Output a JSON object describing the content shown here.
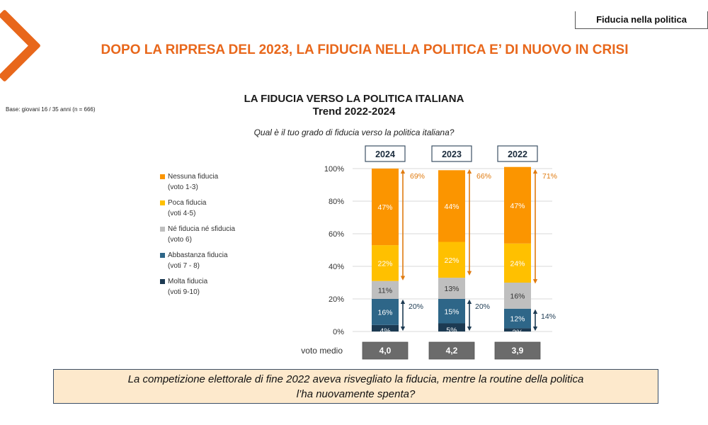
{
  "header": {
    "tag": "Fiducia nella politica",
    "main_title": "DOPO LA RIPRESA DEL 2023, LA FIDUCIA NELLA POLITICA E’ DI NUOVO IN CRISI",
    "base_note": "Base: giovani 16 / 35 anni (n = 666)"
  },
  "callout": {
    "line1": "La competizione elettorale di fine 2022  aveva risvegliato la fiducia, mentre la routine  della politica",
    "line2": "l’ha nuovamente spenta?"
  },
  "colors": {
    "accent": "#e8671b",
    "nessuna": "#fb9500",
    "poca": "#ffc000",
    "ne": "#bfbfbf",
    "abbastanza": "#2e6688",
    "molta": "#1c3a52",
    "arrow_orange": "#e07b10",
    "arrow_navy": "#1c3a52",
    "voto_box": "#6b6b6b"
  },
  "legend": [
    {
      "line1": "Nessuna fiducia",
      "line2": "(voto 1-3)",
      "key": "nessuna"
    },
    {
      "line1": "Poca fiducia",
      "line2": "(voti 4-5)",
      "key": "poca"
    },
    {
      "line1": "Né fiducia né sfiducia",
      "line2": "(voto 6)",
      "key": "ne"
    },
    {
      "line1": "Abbastanza fiducia",
      "line2": "(voti 7 - 8)",
      "key": "abbastanza"
    },
    {
      "line1": "Molta fiducia",
      "line2": "(voti 9-10)",
      "key": "molta"
    }
  ],
  "chart_data": {
    "type": "bar",
    "stacked": true,
    "title": "LA FIDUCIA VERSO LA POLITICA ITALIANA",
    "subtitle": "Trend 2022-2024",
    "question": "Qual è il tuo grado di fiducia verso la politica italiana?",
    "categories": [
      "2024",
      "2023",
      "2022"
    ],
    "ylim": [
      0,
      100
    ],
    "yticks": [
      "0%",
      "20%",
      "40%",
      "60%",
      "80%",
      "100%"
    ],
    "grid": true,
    "legend_position": "left",
    "series": [
      {
        "name": "Molta fiducia (voti 9-10)",
        "key": "molta",
        "values": [
          4,
          5,
          2
        ]
      },
      {
        "name": "Abbastanza fiducia (voti 7 - 8)",
        "key": "abbastanza",
        "values": [
          16,
          15,
          12
        ]
      },
      {
        "name": "Né fiducia né sfiducia (voto 6)",
        "key": "ne",
        "values": [
          11,
          13,
          16
        ]
      },
      {
        "name": "Poca fiducia (voti 4-5)",
        "key": "poca",
        "values": [
          22,
          22,
          24
        ]
      },
      {
        "name": "Nessuna fiducia (voto 1-3)",
        "key": "nessuna",
        "values": [
          47,
          44,
          47
        ]
      }
    ],
    "totals_negative": {
      "label_values": [
        "69%",
        "66%",
        "71%"
      ]
    },
    "totals_positive": {
      "label_values": [
        "20%",
        "20%",
        "14%"
      ]
    },
    "voto_medio": {
      "label": "voto medio",
      "values": [
        "4,0",
        "4,2",
        "3,9"
      ]
    }
  }
}
